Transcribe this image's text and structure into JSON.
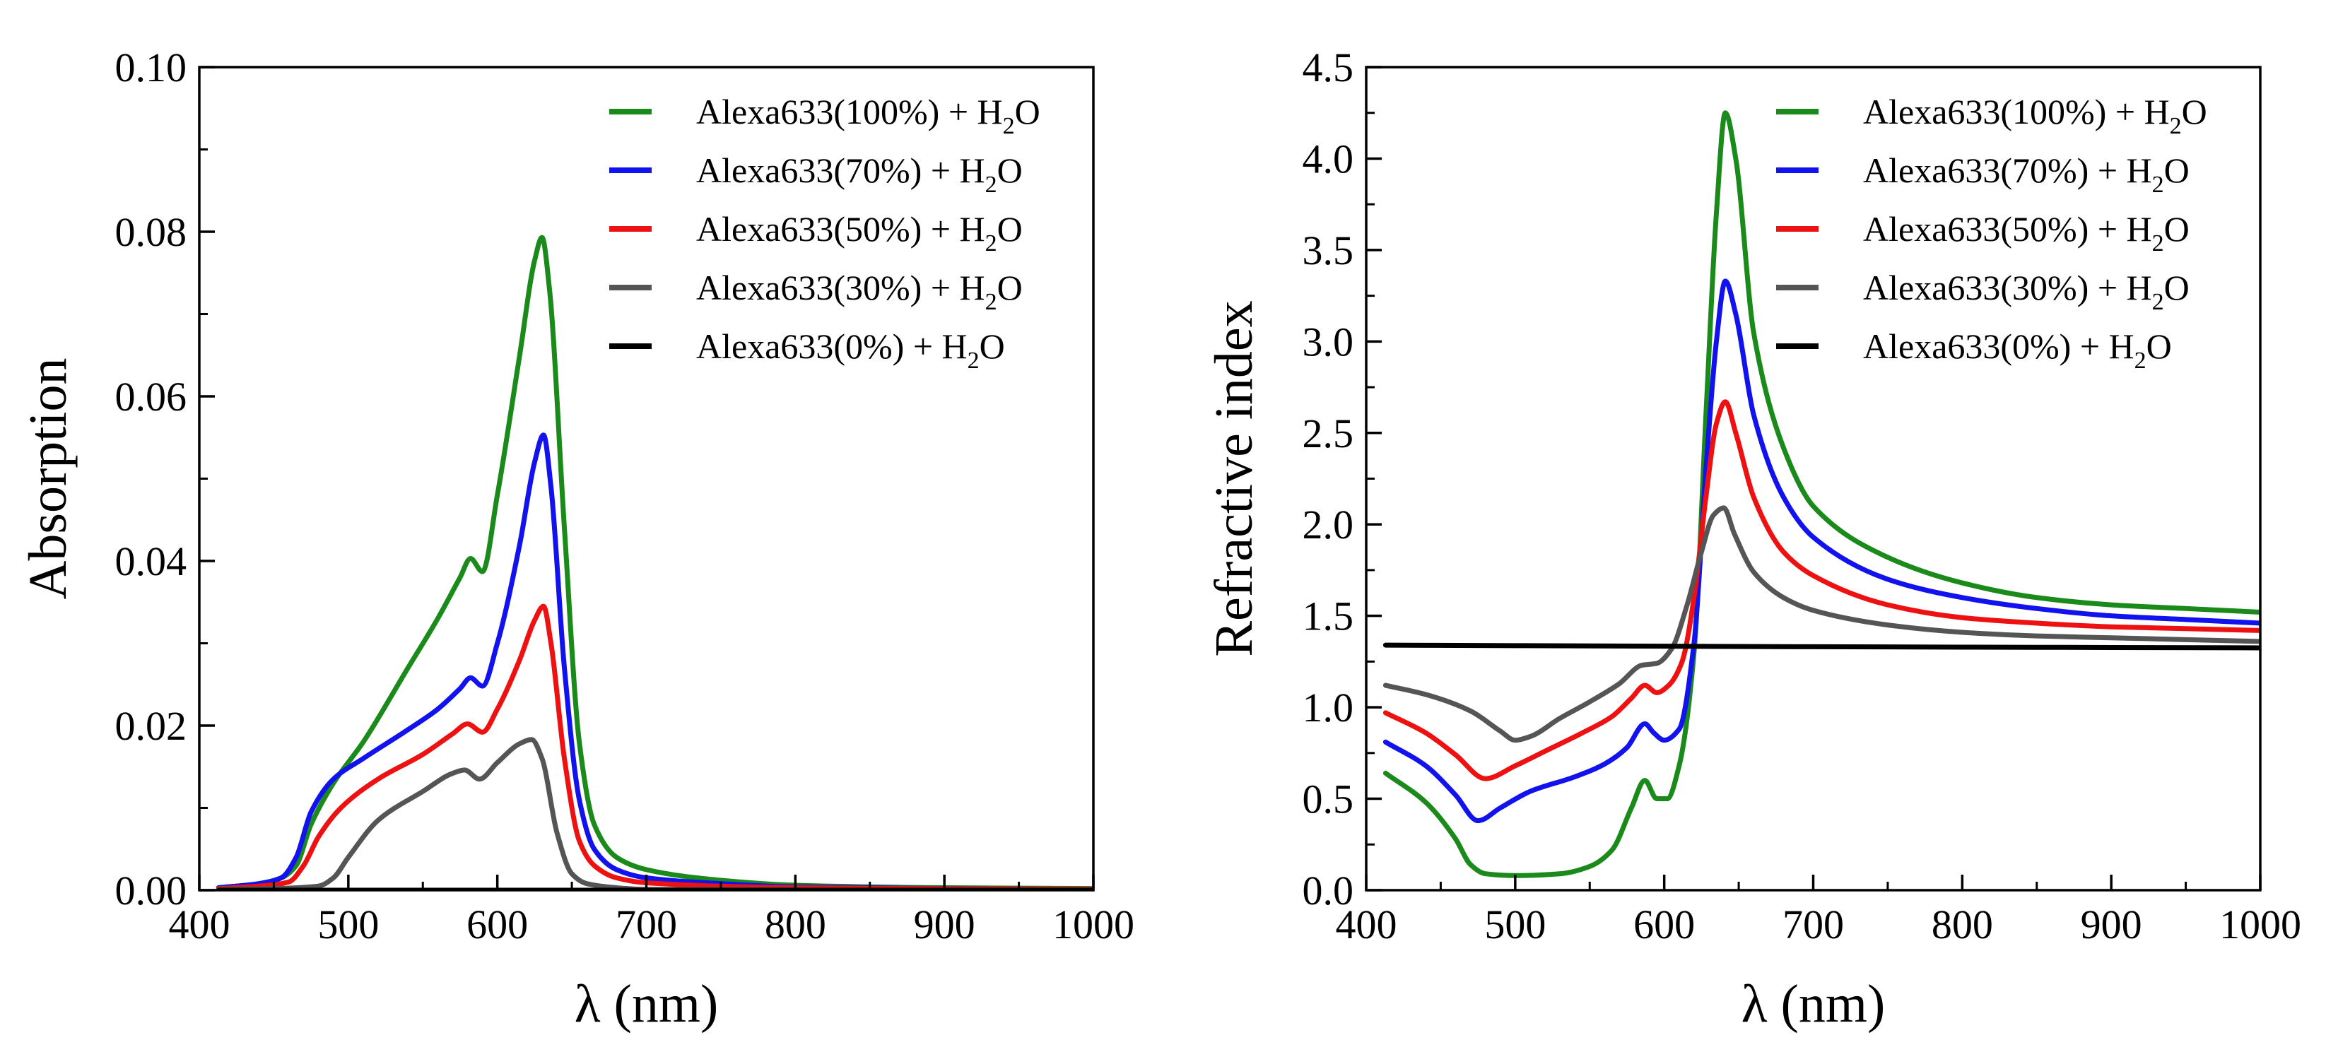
{
  "chart_data": [
    {
      "type": "line",
      "xlabel": "λ (nm)",
      "ylabel": "Absorption",
      "xlim": [
        400,
        1000
      ],
      "ylim": [
        0,
        0.1
      ],
      "xticks": [
        400,
        500,
        600,
        700,
        800,
        900,
        1000
      ],
      "xtick_labels": [
        "400",
        "500",
        "600",
        "700",
        "800",
        "900",
        "1000"
      ],
      "yticks": [
        0,
        0.02,
        0.04,
        0.06,
        0.08,
        0.1
      ],
      "ytick_labels": [
        "0.00",
        "0.02",
        "0.04",
        "0.06",
        "0.08",
        "0.10"
      ],
      "legend_position": "top-right",
      "series": [
        {
          "name": "Alexa633(100%) + H2O",
          "legend_main": "Alexa633(100%) + H",
          "legend_sub": "2",
          "legend_tail": "O",
          "color": "#1a8a1a",
          "x": [
            413,
            440,
            455,
            465,
            475,
            490,
            510,
            540,
            560,
            575,
            582,
            590,
            600,
            615,
            625,
            630,
            635,
            645,
            655,
            665,
            680,
            700,
            750,
            800,
            900,
            1000
          ],
          "y": [
            0.0003,
            0.0008,
            0.0015,
            0.003,
            0.008,
            0.013,
            0.018,
            0.027,
            0.033,
            0.038,
            0.0403,
            0.0387,
            0.048,
            0.065,
            0.0765,
            0.0793,
            0.073,
            0.044,
            0.018,
            0.008,
            0.004,
            0.0025,
            0.0012,
            0.0006,
            0.0003,
            0.0002
          ]
        },
        {
          "name": "Alexa633(70%) + H2O",
          "legend_main": "Alexa633(70%) + H",
          "legend_sub": "2",
          "legend_tail": "O",
          "color": "#1212ee",
          "x": [
            413,
            440,
            455,
            465,
            475,
            490,
            510,
            540,
            560,
            575,
            582,
            590,
            600,
            615,
            625,
            631,
            636,
            645,
            655,
            665,
            680,
            700,
            750,
            800,
            900,
            1000
          ],
          "y": [
            0.0003,
            0.0008,
            0.0015,
            0.004,
            0.0095,
            0.0135,
            0.016,
            0.0195,
            0.022,
            0.0245,
            0.0258,
            0.0248,
            0.03,
            0.042,
            0.052,
            0.0553,
            0.049,
            0.027,
            0.011,
            0.005,
            0.0025,
            0.0015,
            0.0008,
            0.0004,
            0.0002,
            0.0001
          ]
        },
        {
          "name": "Alexa633(50%) + H2O",
          "legend_main": "Alexa633(50%) + H",
          "legend_sub": "2",
          "legend_tail": "O",
          "color": "#ee1111",
          "x": [
            413,
            440,
            460,
            470,
            480,
            495,
            520,
            550,
            570,
            580,
            590,
            600,
            615,
            625,
            631,
            636,
            645,
            655,
            665,
            680,
            700,
            800,
            1000
          ],
          "y": [
            0.0002,
            0.0005,
            0.001,
            0.003,
            0.0065,
            0.01,
            0.0135,
            0.0165,
            0.019,
            0.0202,
            0.0192,
            0.022,
            0.028,
            0.0328,
            0.0345,
            0.03,
            0.016,
            0.006,
            0.003,
            0.0015,
            0.0009,
            0.0003,
            0.0001
          ]
        },
        {
          "name": "Alexa633(30%) + H2O",
          "legend_main": "Alexa633(30%) + H",
          "legend_sub": "2",
          "legend_tail": "O",
          "color": "#555555",
          "x": [
            413,
            450,
            480,
            490,
            500,
            520,
            550,
            570,
            578,
            588,
            600,
            615,
            623,
            630,
            640,
            650,
            660,
            680,
            700,
            1000
          ],
          "y": [
            0.0001,
            0.0002,
            0.0005,
            0.0015,
            0.004,
            0.0085,
            0.012,
            0.0142,
            0.0146,
            0.0135,
            0.0155,
            0.0178,
            0.0183,
            0.016,
            0.007,
            0.002,
            0.0008,
            0.0003,
            0.0001,
            0.0
          ]
        },
        {
          "name": "Alexa633(0%) + H2O",
          "legend_main": "Alexa633(0%) + H",
          "legend_sub": "2",
          "legend_tail": "O",
          "color": "#000000",
          "x": [
            413,
            1000
          ],
          "y": [
            0.0,
            0.0
          ]
        }
      ]
    },
    {
      "type": "line",
      "xlabel": "λ (nm)",
      "ylabel": "Refractive index",
      "xlim": [
        400,
        1000
      ],
      "ylim": [
        0,
        4.5
      ],
      "xticks": [
        400,
        500,
        600,
        700,
        800,
        900,
        1000
      ],
      "xtick_labels": [
        "400",
        "500",
        "600",
        "700",
        "800",
        "900",
        "1000"
      ],
      "yticks": [
        0,
        0.5,
        1,
        1.5,
        2,
        2.5,
        3,
        3.5,
        4,
        4.5
      ],
      "ytick_labels": [
        "0.0",
        "0.5",
        "1.0",
        "1.5",
        "2.0",
        "2.5",
        "3.0",
        "3.5",
        "4.0",
        "4.5"
      ],
      "legend_position": "top-right",
      "series": [
        {
          "name": "Alexa633(100%) + H2O",
          "legend_main": "Alexa633(100%) + H",
          "legend_sub": "2",
          "legend_tail": "O",
          "color": "#1a8a1a",
          "x": [
            413,
            440,
            460,
            470,
            480,
            500,
            530,
            550,
            565,
            578,
            587,
            595,
            602,
            610,
            620,
            628,
            635,
            641,
            648,
            660,
            680,
            700,
            750,
            800,
            850,
            900,
            950,
            1000
          ],
          "y": [
            0.64,
            0.48,
            0.28,
            0.14,
            0.09,
            0.08,
            0.09,
            0.13,
            0.22,
            0.45,
            0.6,
            0.5,
            0.5,
            0.68,
            1.3,
            2.6,
            3.7,
            4.25,
            4.0,
            3.05,
            2.42,
            2.1,
            1.82,
            1.68,
            1.6,
            1.56,
            1.54,
            1.52
          ]
        },
        {
          "name": "Alexa633(70%) + H2O",
          "legend_main": "Alexa633(70%) + H",
          "legend_sub": "2",
          "legend_tail": "O",
          "color": "#1212ee",
          "x": [
            413,
            440,
            460,
            475,
            490,
            510,
            540,
            560,
            575,
            587,
            593,
            600,
            610,
            620,
            628,
            635,
            641,
            648,
            660,
            680,
            700,
            750,
            800,
            850,
            900,
            950,
            1000
          ],
          "y": [
            0.81,
            0.68,
            0.52,
            0.38,
            0.45,
            0.54,
            0.62,
            0.69,
            0.78,
            0.91,
            0.86,
            0.82,
            0.88,
            1.35,
            2.3,
            3.0,
            3.33,
            3.15,
            2.6,
            2.15,
            1.93,
            1.7,
            1.6,
            1.54,
            1.5,
            1.48,
            1.46
          ]
        },
        {
          "name": "Alexa633(50%) + H2O",
          "legend_main": "Alexa633(50%) + H",
          "legend_sub": "2",
          "legend_tail": "O",
          "color": "#ee1111",
          "x": [
            413,
            440,
            460,
            480,
            500,
            520,
            545,
            565,
            578,
            587,
            595,
            603,
            612,
            620,
            628,
            635,
            641,
            648,
            660,
            680,
            700,
            750,
            800,
            850,
            900,
            950,
            1000
          ],
          "y": [
            0.97,
            0.86,
            0.74,
            0.61,
            0.68,
            0.76,
            0.86,
            0.95,
            1.05,
            1.12,
            1.08,
            1.12,
            1.25,
            1.6,
            2.15,
            2.55,
            2.67,
            2.5,
            2.15,
            1.85,
            1.72,
            1.56,
            1.49,
            1.46,
            1.44,
            1.43,
            1.42
          ]
        },
        {
          "name": "Alexa633(30%) + H2O",
          "legend_main": "Alexa633(30%) + H",
          "legend_sub": "2",
          "legend_tail": "O",
          "color": "#555555",
          "x": [
            413,
            440,
            470,
            490,
            500,
            510,
            530,
            550,
            570,
            585,
            595,
            605,
            615,
            625,
            633,
            640,
            647,
            660,
            680,
            700,
            750,
            800,
            850,
            900,
            950,
            1000
          ],
          "y": [
            1.12,
            1.07,
            0.98,
            0.87,
            0.82,
            0.84,
            0.94,
            1.03,
            1.13,
            1.23,
            1.24,
            1.32,
            1.55,
            1.85,
            2.05,
            2.09,
            1.95,
            1.74,
            1.6,
            1.53,
            1.45,
            1.41,
            1.39,
            1.38,
            1.37,
            1.36
          ]
        },
        {
          "name": "Alexa633(0%) + H2O",
          "legend_main": "Alexa633(0%) + H",
          "legend_sub": "2",
          "legend_tail": "O",
          "color": "#000000",
          "x": [
            413,
            500,
            600,
            700,
            800,
            900,
            1000
          ],
          "y": [
            1.34,
            1.337,
            1.334,
            1.331,
            1.329,
            1.327,
            1.325
          ]
        }
      ]
    }
  ]
}
